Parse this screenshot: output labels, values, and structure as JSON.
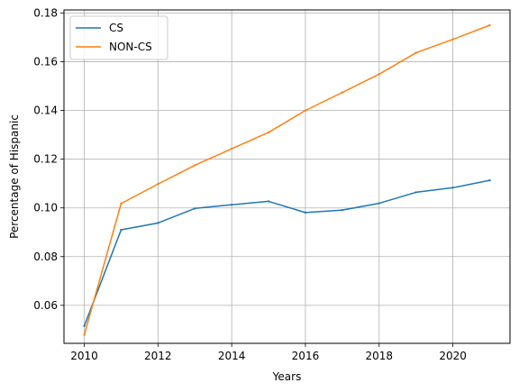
{
  "chart_data": {
    "type": "line",
    "title": "",
    "xlabel": "Years",
    "ylabel": "Percentage of Hispanic",
    "xlim": [
      2009.45,
      2021.55
    ],
    "ylim": [
      0.0444,
      0.1813
    ],
    "xticks": [
      2010,
      2012,
      2014,
      2016,
      2018,
      2020
    ],
    "xtick_labels": [
      "2010",
      "2012",
      "2014",
      "2016",
      "2018",
      "2020"
    ],
    "yticks": [
      0.06,
      0.08,
      0.1,
      0.12,
      0.14,
      0.16,
      0.18
    ],
    "ytick_labels": [
      "0.06",
      "0.08",
      "0.10",
      "0.12",
      "0.14",
      "0.16",
      "0.18"
    ],
    "grid": true,
    "legend_position": "upper-left",
    "x": [
      2010,
      2011,
      2012,
      2013,
      2014,
      2015,
      2016,
      2017,
      2018,
      2019,
      2020,
      2021
    ],
    "series": [
      {
        "name": "CS",
        "color": "#1f77b4",
        "values": [
          0.0515,
          0.091,
          0.0938,
          0.0998,
          0.1013,
          0.1027,
          0.0981,
          0.0991,
          0.1019,
          0.1064,
          0.1083,
          0.1113
        ]
      },
      {
        "name": "NON-CS",
        "color": "#ff7f0e",
        "values": [
          0.0479,
          0.1018,
          0.1098,
          0.1175,
          0.1243,
          0.131,
          0.14,
          0.1474,
          0.1549,
          0.1637,
          0.1692,
          0.175
        ]
      }
    ]
  }
}
